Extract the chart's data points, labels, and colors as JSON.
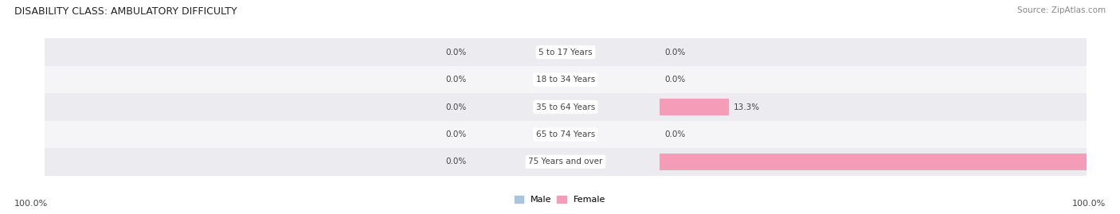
{
  "title": "DISABILITY CLASS: AMBULATORY DIFFICULTY",
  "source": "Source: ZipAtlas.com",
  "categories": [
    "5 to 17 Years",
    "18 to 34 Years",
    "35 to 64 Years",
    "65 to 74 Years",
    "75 Years and over"
  ],
  "male_values": [
    0.0,
    0.0,
    0.0,
    0.0,
    0.0
  ],
  "female_values": [
    0.0,
    0.0,
    13.3,
    0.0,
    100.0
  ],
  "male_color": "#a8c4e0",
  "female_color": "#f49cb8",
  "row_bg_even": "#ebebf0",
  "row_bg_odd": "#f5f5f8",
  "text_color": "#444444",
  "title_color": "#222222",
  "axis_max": 100.0,
  "left_label": "100.0%",
  "right_label": "100.0%",
  "legend_male": "Male",
  "legend_female": "Female",
  "fig_width": 14.06,
  "fig_height": 2.69,
  "dpi": 100
}
